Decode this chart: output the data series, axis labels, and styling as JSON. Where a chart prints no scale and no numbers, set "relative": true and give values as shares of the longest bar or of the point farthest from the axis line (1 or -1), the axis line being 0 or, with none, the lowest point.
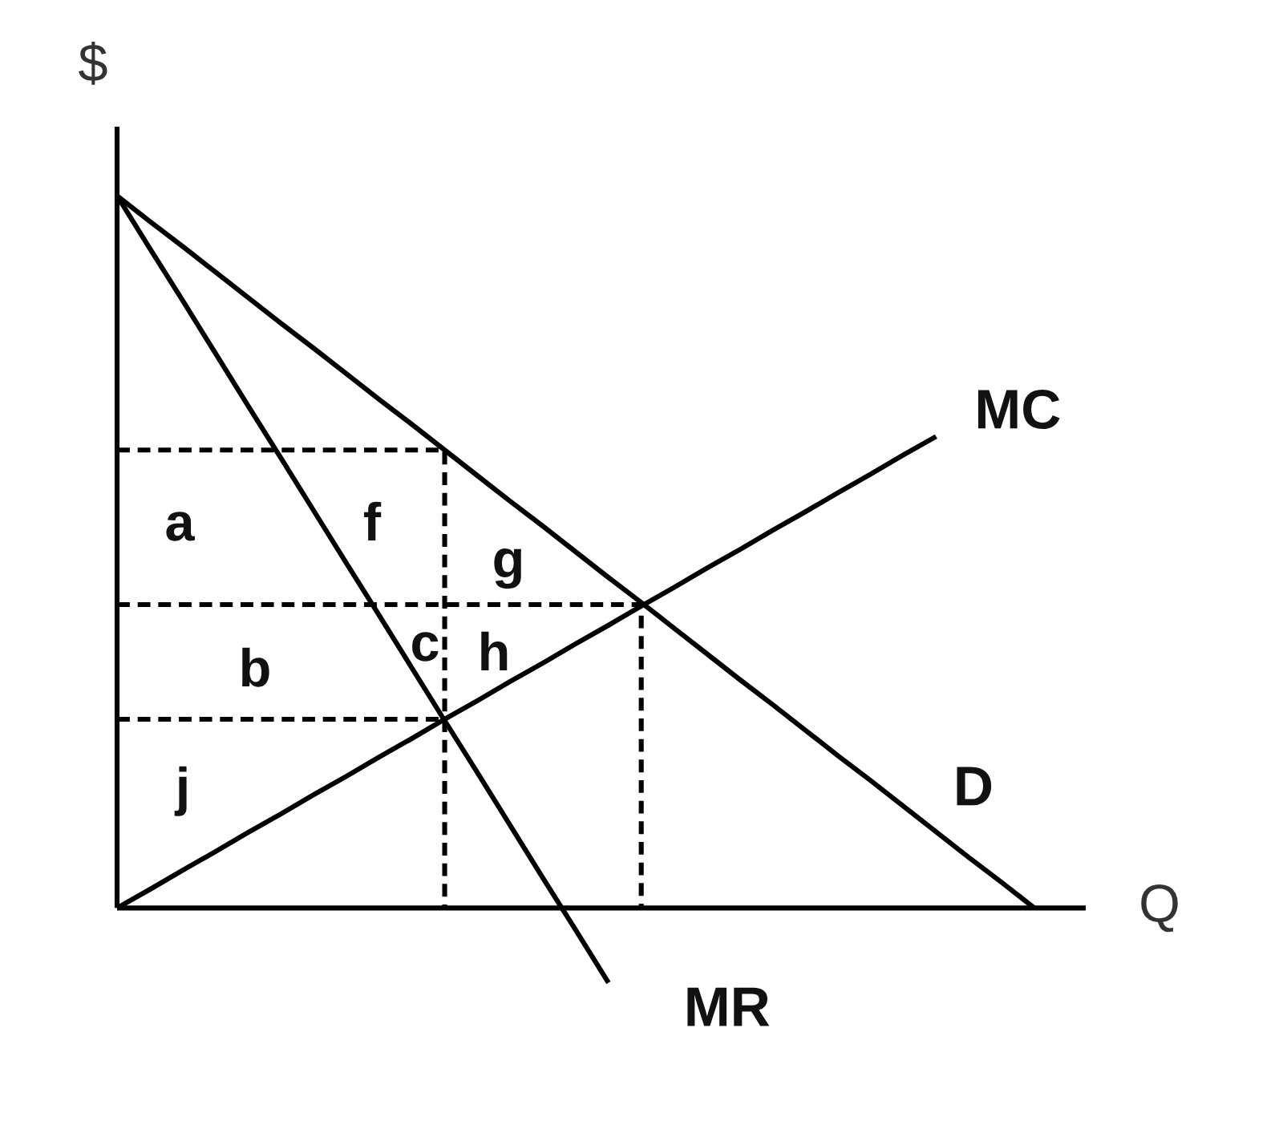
{
  "chart_data": {
    "type": "line",
    "relative": true,
    "xlabel": "Q",
    "ylabel": "$",
    "legend": false,
    "marker": "none",
    "line_style": "solid",
    "categories": [
      null,
      null,
      null,
      null,
      null,
      null,
      null,
      null,
      null,
      null,
      null,
      null,
      null,
      null,
      null,
      null,
      null,
      null,
      null,
      null,
      null,
      null,
      null,
      null,
      null,
      null,
      null,
      null,
      null
    ],
    "series": [
      {
        "name": "D",
        "color": "#000000",
        "values": [
          1,
          0.964,
          0.929,
          0.893,
          0.857,
          0.821,
          0.786,
          0.75,
          0.714,
          0.679,
          0.643,
          0.607,
          0.571,
          0.536,
          0.5,
          0.464,
          0.429,
          0.393,
          0.357,
          0.321,
          0.286,
          0.25,
          0.214,
          0.179,
          0.143,
          0.107,
          0.071,
          0.036,
          0
        ]
      },
      {
        "name": "MR",
        "color": "#000000",
        "values": [
          1,
          0.926,
          0.853,
          0.779,
          0.705,
          0.632,
          0.558,
          0.484,
          0.411,
          0.337,
          0.263,
          0.19,
          0.116,
          0.042,
          -0.031,
          -0.105,
          null,
          null,
          null,
          null,
          null,
          null,
          null,
          null,
          null,
          null,
          null,
          null,
          null
        ]
      },
      {
        "name": "MC",
        "color": "#000000",
        "values": [
          0,
          0.026,
          0.053,
          0.079,
          0.106,
          0.132,
          0.159,
          0.185,
          0.212,
          0.238,
          0.265,
          0.291,
          0.318,
          0.344,
          0.371,
          0.397,
          0.424,
          0.45,
          0.477,
          0.503,
          0.53,
          0.556,
          0.583,
          0.609,
          0.636,
          0.662,
          null,
          null,
          null
        ]
      },
      {
        "type": "step",
        "color": "#000000",
        "line_style": "dashed",
        "values": [
          0.643,
          0.643,
          0.643,
          0.643,
          0.643,
          0.643,
          0.643,
          0.643,
          0.643,
          0.643,
          0,
          null,
          null,
          null,
          null,
          null,
          null,
          null,
          null,
          null,
          null,
          null,
          null,
          null,
          null,
          null,
          null,
          null,
          null
        ]
      },
      {
        "type": "step",
        "color": "#000000",
        "line_style": "dashed",
        "values": [
          0.426,
          0.426,
          0.426,
          0.426,
          0.426,
          0.426,
          0.426,
          0.426,
          0.426,
          0.426,
          0.426,
          0.426,
          0.426,
          0.426,
          0.426,
          0.426,
          0,
          null,
          null,
          null,
          null,
          null,
          null,
          null,
          null,
          null,
          null,
          null,
          null
        ]
      },
      {
        "type": "line",
        "color": "#000000",
        "line_style": "dashed",
        "values": [
          0.265,
          0.265,
          0.265,
          0.265,
          0.265,
          0.265,
          0.265,
          0.265,
          0.265,
          0.265,
          0.265,
          null,
          null,
          null,
          null,
          null,
          null,
          null,
          null,
          null,
          null,
          null,
          null,
          null,
          null,
          null,
          null,
          null,
          null
        ]
      }
    ],
    "annotations": [
      "a",
      "f",
      "g",
      "b",
      "c",
      "h",
      "j"
    ]
  }
}
